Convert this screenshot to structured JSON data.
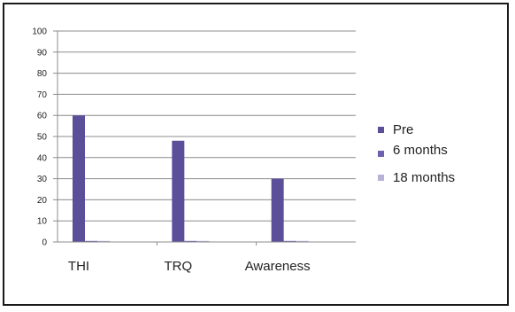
{
  "chart_data": {
    "type": "bar",
    "categories": [
      "THI",
      "TRQ",
      "Awareness"
    ],
    "series": [
      {
        "name": "Pre",
        "values": [
          60,
          48,
          30
        ],
        "color": "#5b4f9a"
      },
      {
        "name": "6 months",
        "values": [
          0.5,
          0.5,
          0.5
        ],
        "color": "#6e62b0"
      },
      {
        "name": "18 months",
        "values": [
          0.5,
          0.5,
          0.5
        ],
        "color": "#b7b2d8"
      }
    ],
    "ylim": [
      0,
      100
    ],
    "yticks": [
      0,
      10,
      20,
      30,
      40,
      50,
      60,
      70,
      80,
      90,
      100
    ],
    "grid": true,
    "legend_position": "right",
    "gridline_color": "#8c8c8c",
    "axis_color": "#8c8c8c"
  }
}
